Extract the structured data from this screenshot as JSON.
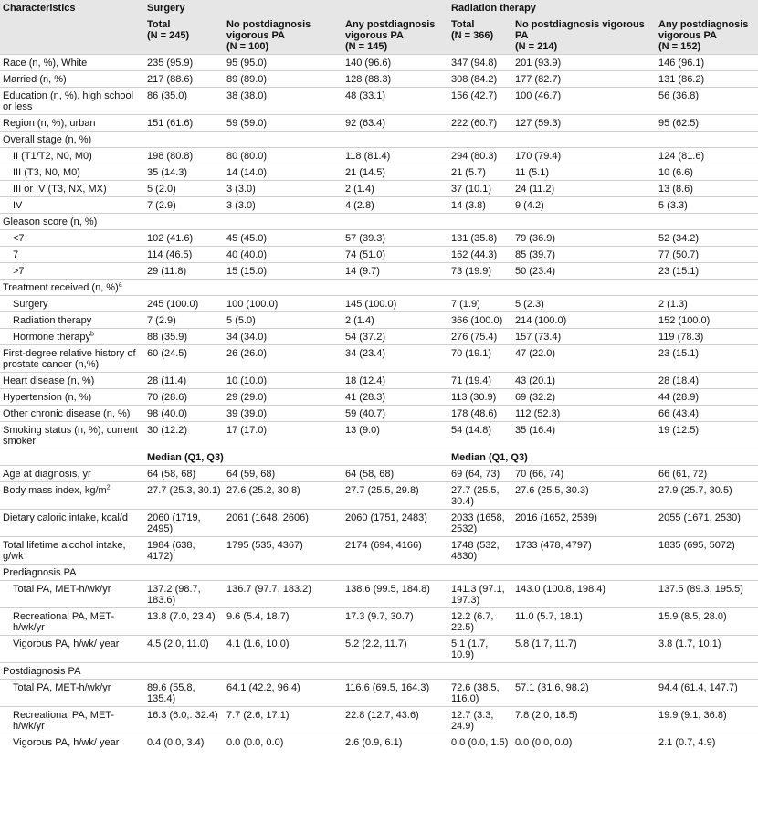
{
  "table": {
    "characteristics": "Characteristics",
    "groups": [
      "Surgery",
      "Radiation therapy"
    ],
    "subheaders": [
      [
        "Total",
        "(N = 245)"
      ],
      [
        "No postdiagnosis vigorous PA",
        "(N = 100)"
      ],
      [
        "Any postdiagnosis vigorous PA",
        "(N = 145)"
      ],
      [
        "Total",
        "(N = 366)"
      ],
      [
        "No postdiagnosis vigorous PA",
        "(N = 214)"
      ],
      [
        "Any postdiagnosis vigorous PA",
        "(N = 152)"
      ]
    ],
    "rows": [
      {
        "label": "Race (n, %), White",
        "cells": [
          "235 (95.9)",
          "95 (95.0)",
          "140 (96.6)",
          "347 (94.8)",
          "201 (93.9)",
          "146 (96.1)"
        ]
      },
      {
        "label": "Married (n, %)",
        "cells": [
          "217 (88.6)",
          "89 (89.0)",
          "128 (88.3)",
          "308 (84.2)",
          "177 (82.7)",
          "131 (86.2)"
        ]
      },
      {
        "label": "Education (n, %), high school or less",
        "cells": [
          "86 (35.0)",
          "38 (38.0)",
          "48 (33.1)",
          "156 (42.7)",
          "100 (46.7)",
          "56 (36.8)"
        ]
      },
      {
        "label": "Region (n, %), urban",
        "cells": [
          "151 (61.6)",
          "59 (59.0)",
          "92 (63.4)",
          "222 (60.7)",
          "127 (59.3)",
          "95 (62.5)"
        ]
      },
      {
        "label": "Overall stage (n, %)",
        "rows": [
          {
            "label": "II (T1/T2, N0, M0)",
            "cells": [
              "198 (80.8)",
              "80 (80.0)",
              "118 (81.4)",
              "294 (80.3)",
              "170 (79.4)",
              "124 (81.6)"
            ]
          },
          {
            "label": "III (T3, N0, M0)",
            "cells": [
              "35 (14.3)",
              "14 (14.0)",
              "21 (14.5)",
              "21 (5.7)",
              "11 (5.1)",
              "10 (6.6)"
            ]
          },
          {
            "label": "III or IV (T3, NX, MX)",
            "cells": [
              "5 (2.0)",
              "3 (3.0)",
              "2 (1.4)",
              "37 (10.1)",
              "24 (11.2)",
              "13 (8.6)"
            ]
          },
          {
            "label": "IV",
            "cells": [
              "7 (2.9)",
              "3 (3.0)",
              "4 (2.8)",
              "14 (3.8)",
              "9 (4.2)",
              "5 (3.3)"
            ]
          }
        ]
      },
      {
        "label": "Gleason score (n, %)",
        "rows": [
          {
            "label": "<7",
            "cells": [
              "102 (41.6)",
              "45 (45.0)",
              "57 (39.3)",
              "131 (35.8)",
              "79 (36.9)",
              "52 (34.2)"
            ]
          },
          {
            "label": "7",
            "cells": [
              "114 (46.5)",
              "40 (40.0)",
              "74 (51.0)",
              "162 (44.3)",
              "85 (39.7)",
              "77 (50.7)"
            ]
          },
          {
            "label": ">7",
            "cells": [
              "29 (11.8)",
              "15 (15.0)",
              "14 (9.7)",
              "73 (19.9)",
              "50 (23.4)",
              "23 (15.1)"
            ]
          }
        ]
      },
      {
        "label": "Treatment received (n, %)",
        "sup": "a",
        "rows": [
          {
            "label": "Surgery",
            "cells": [
              "245 (100.0)",
              "100 (100.0)",
              "145 (100.0)",
              "7 (1.9)",
              "5 (2.3)",
              "2 (1.3)"
            ]
          },
          {
            "label": "Radiation therapy",
            "cells": [
              "7 (2.9)",
              "5 (5.0)",
              "2 (1.4)",
              "366 (100.0)",
              "214 (100.0)",
              "152 (100.0)"
            ]
          },
          {
            "label": "Hormone therapy",
            "sup": "b",
            "cells": [
              "88 (35.9)",
              "34 (34.0)",
              "54 (37.2)",
              "276 (75.4)",
              "157 (73.4)",
              "119 (78.3)"
            ]
          }
        ]
      },
      {
        "label": "First-degree relative history of prostate cancer (n,%)",
        "cells": [
          "60 (24.5)",
          "26 (26.0)",
          "34 (23.4)",
          "70 (19.1)",
          "47 (22.0)",
          "23 (15.1)"
        ]
      },
      {
        "label": "Heart disease (n, %)",
        "cells": [
          "28 (11.4)",
          "10 (10.0)",
          "18 (12.4)",
          "71 (19.4)",
          "43 (20.1)",
          "28 (18.4)"
        ]
      },
      {
        "label": "Hypertension (n, %)",
        "cells": [
          "70 (28.6)",
          "29 (29.0)",
          "41 (28.3)",
          "113 (30.9)",
          "69 (32.2)",
          "44 (28.9)"
        ]
      },
      {
        "label": "Other chronic disease (n, %)",
        "cells": [
          "98 (40.0)",
          "39 (39.0)",
          "59 (40.7)",
          "178 (48.6)",
          "112 (52.3)",
          "66 (43.4)"
        ]
      },
      {
        "label": "Smoking status (n, %), current smoker",
        "cells": [
          "30 (12.2)",
          "17 (17.0)",
          "13 (9.0)",
          "54 (14.8)",
          "35 (16.4)",
          "19 (12.5)"
        ]
      },
      {
        "headings": [
          "Median (Q1, Q3)",
          "Median (Q1, Q3)"
        ]
      },
      {
        "label": "Age at diagnosis, yr",
        "cells": [
          "64 (58, 68)",
          "64 (59, 68)",
          "64 (58, 68)",
          "69 (64, 73)",
          "70 (66, 74)",
          "66 (61, 72)"
        ]
      },
      {
        "label": "Body mass index, kg/m",
        "sup": "2",
        "cells": [
          "27.7 (25.3, 30.1)",
          "27.6 (25.2, 30.8)",
          "27.7 (25.5, 29.8)",
          "27.7 (25.5, 30.4)",
          "27.6 (25.5, 30.3)",
          "27.9 (25.7, 30.5)"
        ]
      },
      {
        "label": "Dietary caloric intake, kcal/d",
        "cells": [
          "2060 (1719, 2495)",
          "2061 (1648, 2606)",
          "2060 (1751, 2483)",
          "2033 (1658, 2532)",
          "2016 (1652, 2539)",
          "2055 (1671, 2530)"
        ]
      },
      {
        "label": "Total lifetime alcohol intake, g/wk",
        "cells": [
          "1984 (638, 4172)",
          "1795 (535, 4367)",
          "2174 (694, 4166)",
          "1748 (532, 4830)",
          "1733 (478, 4797)",
          "1835 (695, 5072)"
        ]
      },
      {
        "label": "Prediagnosis PA",
        "rows": [
          {
            "label": "Total PA, MET-h/wk/yr",
            "cells": [
              "137.2 (98.7, 183.6)",
              "136.7 (97.7, 183.2)",
              "138.6 (99.5, 184.8)",
              "141.3 (97.1, 197.3)",
              "143.0 (100.8, 198.4)",
              "137.5 (89.3, 195.5)"
            ]
          },
          {
            "label": "Recreational PA, MET-h/wk/yr",
            "cells": [
              "13.8 (7.0, 23.4)",
              "9.6 (5.4, 18.7)",
              "17.3 (9.7, 30.7)",
              "12.2 (6.7, 22.5)",
              "11.0 (5.7, 18.1)",
              "15.9 (8.5, 28.0)"
            ]
          },
          {
            "label": "Vigorous PA, h/wk/ year",
            "cells": [
              "4.5 (2.0, 11.0)",
              "4.1 (1.6, 10.0)",
              "5.2 (2.2, 11.7)",
              "5.1 (1.7, 10.9)",
              "5.8 (1.7, 11.7)",
              "3.8 (1.7, 10.1)"
            ]
          }
        ]
      },
      {
        "label": "Postdiagnosis PA",
        "rows": [
          {
            "label": "Total PA, MET-h/wk/yr",
            "cells": [
              "89.6 (55.8, 135.4)",
              "64.1 (42.2, 96.4)",
              "116.6 (69.5, 164.3)",
              "72.6 (38.5, 116.0)",
              "57.1 (31.6, 98.2)",
              "94.4 (61.4, 147.7)"
            ]
          },
          {
            "label": "Recreational PA, MET-h/wk/yr",
            "cells": [
              "16.3 (6.0,. 32.4)",
              "7.7 (2.6, 17.1)",
              "22.8 (12.7, 43.6)",
              "12.7 (3.3, 24.9)",
              "7.8 (2.0, 18.5)",
              "19.9 (9.1, 36.8)"
            ]
          },
          {
            "label": "Vigorous PA, h/wk/ year",
            "cells": [
              "0.4 (0.0, 3.4)",
              "0.0 (0.0, 0.0)",
              "2.6 (0.9, 6.1)",
              "0.0 (0.0, 1.5)",
              "0.0 (0.0, 0.0)",
              "2.1 (0.7, 4.9)"
            ]
          }
        ]
      }
    ]
  }
}
